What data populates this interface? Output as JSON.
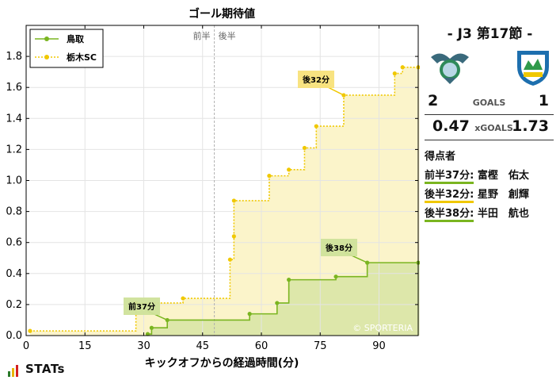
{
  "chart_data": {
    "type": "line",
    "title": "ゴール期待値",
    "xlabel": "キックオフからの経過時間(分)",
    "ylabel": "",
    "xlim": [
      0,
      100
    ],
    "ylim": [
      0,
      2.0
    ],
    "xticks": [
      0,
      15,
      30,
      45,
      60,
      75,
      90
    ],
    "yticks": [
      0.0,
      0.2,
      0.4,
      0.6,
      0.8,
      1.0,
      1.2,
      1.4,
      1.6,
      1.8
    ],
    "grid": true,
    "legend_position": "top-left",
    "half_labels": {
      "first": "前半",
      "second": "後半"
    },
    "halftime_x": 48,
    "watermark": "© SPORTERIA",
    "series": [
      {
        "name": "鳥取",
        "style": "solid",
        "color": "#7ab520",
        "fill": "#d9e6a6",
        "step_end": 101,
        "points": [
          [
            31,
            0.01
          ],
          [
            32,
            0.05
          ],
          [
            36,
            0.1
          ],
          [
            57,
            0.14
          ],
          [
            64,
            0.21
          ],
          [
            67,
            0.36
          ],
          [
            79,
            0.38
          ],
          [
            87,
            0.47
          ],
          [
            101,
            0.47
          ]
        ]
      },
      {
        "name": "栃木SC",
        "style": "dotted",
        "color": "#f0c800",
        "fill": "#fbf3c4",
        "step_end": 101,
        "points": [
          [
            1,
            0.03
          ],
          [
            28,
            0.21
          ],
          [
            40,
            0.24
          ],
          [
            52,
            0.49
          ],
          [
            53,
            0.64
          ],
          [
            53,
            0.87
          ],
          [
            62,
            1.03
          ],
          [
            67,
            1.07
          ],
          [
            71,
            1.21
          ],
          [
            74,
            1.35
          ],
          [
            81,
            1.55
          ],
          [
            94,
            1.69
          ],
          [
            96,
            1.73
          ],
          [
            101,
            1.73
          ]
        ]
      }
    ],
    "goal_annotations": [
      {
        "label": "前37分",
        "x": 36,
        "y": 0.1,
        "series": 0
      },
      {
        "label": "後32分",
        "x": 81,
        "y": 1.55,
        "series": 1
      },
      {
        "label": "後38分",
        "x": 87,
        "y": 0.47,
        "series": 0
      }
    ]
  },
  "panel": {
    "match_title": "-  J3 第17節  -",
    "home_crest": "tottori-crest",
    "away_crest": "tochigi-crest",
    "goals": {
      "home": "2",
      "label": "GOALS",
      "away": "1"
    },
    "xgoals": {
      "home": "0.47",
      "label": "xGOALS",
      "away": "1.73"
    },
    "scorers_title": "得点者",
    "scorers": [
      {
        "time": "前半37分:",
        "name": "富樫　佑太",
        "team": "home"
      },
      {
        "time": "後半32分:",
        "name": "星野　創輝",
        "team": "away"
      },
      {
        "time": "後半38分:",
        "name": "半田　航也",
        "team": "home"
      }
    ]
  },
  "brand": {
    "text": "STATs",
    "bar_colors": [
      "#2b7a2b",
      "#e8b400",
      "#d32020"
    ]
  }
}
